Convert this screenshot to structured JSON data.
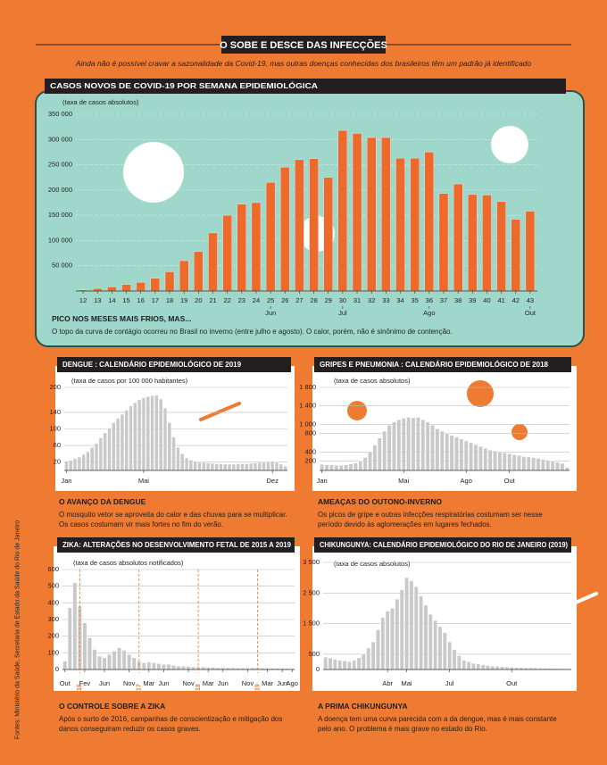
{
  "header": {
    "title": "O SOBE E DESCE DAS INFECÇÕES",
    "subtitle": "Ainda não é possível cravar a sazonalidade da Covid-19, mas outras doenças conhecidas dos brasileiros têm um padrão já identificado"
  },
  "source": "Fontes: Ministério da Saúde, Secretaria de Estado da Saúde do Rio de Janeiro",
  "chart_data": [
    {
      "type": "bar",
      "title": "CASOS NOVOS DE COVID-19 POR SEMANA EPIDEMIOLÓGICA",
      "y_label": "(taxa de casos absolutos)",
      "categories": [
        "12",
        "13",
        "14",
        "15",
        "16",
        "17",
        "18",
        "19",
        "20",
        "21",
        "22",
        "23",
        "24",
        "25",
        "26",
        "27",
        "28",
        "29",
        "30",
        "31",
        "32",
        "33",
        "34",
        "35",
        "36",
        "37",
        "38",
        "39",
        "40",
        "41",
        "42",
        "43"
      ],
      "values": [
        2000,
        5000,
        8000,
        13000,
        17000,
        25000,
        38000,
        60000,
        78000,
        115000,
        150000,
        172000,
        175000,
        215000,
        245000,
        260000,
        262000,
        225000,
        318000,
        312000,
        304000,
        304000,
        263000,
        263000,
        275000,
        193000,
        212000,
        191000,
        190000,
        177000,
        142000,
        158000
      ],
      "month_labels": [
        {
          "label": "Jun",
          "at": 13
        },
        {
          "label": "Jul",
          "at": 18
        },
        {
          "label": "Ago",
          "at": 24
        },
        {
          "label": "Out",
          "at": 31
        }
      ],
      "color": "#ee6a2c",
      "ylim": [
        0,
        350000
      ],
      "yticks": [
        {
          "value": 50000,
          "label": "50 000"
        },
        {
          "value": 100000,
          "label": "100 000"
        },
        {
          "value": 150000,
          "label": "150 000"
        },
        {
          "value": 200000,
          "label": "200 000"
        },
        {
          "value": 250000,
          "label": "250 000"
        },
        {
          "value": 300000,
          "label": "300 000"
        },
        {
          "value": 350000,
          "label": "350 000"
        }
      ],
      "grid": true,
      "caption_title": "PICO NOS MESES MAIS FRIOS, MAS...",
      "caption_text": "O topo da curva de contágio ocorreu no Brasil no inverno (entre julho e agosto). O calor, porém, não é sinônimo de contenção."
    },
    {
      "type": "bar",
      "title": "DENGUE : CALENDÁRIO EPIDEMIOLÓGICO DE 2019",
      "y_label": "(taxa de casos por 100 000 habitantes)",
      "categories": [
        "Jan",
        null,
        null,
        null,
        null,
        null,
        null,
        null,
        null,
        null,
        null,
        null,
        null,
        null,
        null,
        null,
        null,
        null,
        "Mai",
        null,
        null,
        null,
        null,
        null,
        null,
        null,
        null,
        null,
        null,
        null,
        null,
        null,
        null,
        null,
        null,
        null,
        null,
        null,
        null,
        null,
        null,
        null,
        null,
        null,
        null,
        null,
        null,
        null,
        "Dez",
        null,
        null,
        null
      ],
      "values": [
        22,
        24,
        28,
        32,
        38,
        45,
        55,
        65,
        78,
        90,
        102,
        115,
        125,
        135,
        145,
        155,
        163,
        170,
        175,
        178,
        180,
        181,
        172,
        150,
        115,
        80,
        55,
        40,
        30,
        25,
        22,
        20,
        19,
        18,
        17,
        16,
        16,
        15,
        15,
        15,
        16,
        16,
        16,
        17,
        18,
        19,
        20,
        21,
        22,
        20,
        15,
        10
      ],
      "color": "#c9c9c9",
      "ylim": [
        0,
        200
      ],
      "yticks": [
        20,
        60,
        100,
        140,
        200
      ],
      "grid": true,
      "caption_title": "O AVANÇO DA DENGUE",
      "caption_text": "O mosquito vetor se aproveita do calor e das chuvas para se multiplicar. Os casos costumam vir mais fortes no fim do verão."
    },
    {
      "type": "bar",
      "title": "GRIPES E PNEUMONIA : CALENDÁRIO EPIDEMIOLÓGICO DE 2018",
      "y_label": "(taxa de casos absolutos)",
      "categories": [
        "Jan",
        null,
        null,
        null,
        null,
        null,
        null,
        null,
        null,
        null,
        null,
        null,
        null,
        null,
        null,
        null,
        null,
        "Mai",
        null,
        null,
        null,
        null,
        null,
        null,
        null,
        null,
        null,
        null,
        null,
        null,
        "Ago",
        null,
        null,
        null,
        null,
        null,
        null,
        null,
        null,
        "Out",
        null,
        null,
        null,
        null,
        null,
        null,
        null,
        null,
        null,
        null,
        null,
        null
      ],
      "values": [
        130,
        120,
        120,
        110,
        110,
        120,
        140,
        160,
        200,
        280,
        400,
        550,
        700,
        850,
        980,
        1050,
        1100,
        1130,
        1150,
        1140,
        1150,
        1100,
        1050,
        980,
        900,
        850,
        800,
        760,
        720,
        680,
        640,
        600,
        560,
        520,
        480,
        440,
        420,
        400,
        380,
        360,
        340,
        320,
        300,
        290,
        280,
        260,
        240,
        220,
        200,
        180,
        150,
        60
      ],
      "color": "#c9c9c9",
      "ylim": [
        0,
        1800
      ],
      "yticks": [
        200,
        400,
        800,
        {
          "value": 1000,
          "label": "1 000"
        },
        {
          "value": 1400,
          "label": "1 400"
        },
        {
          "value": 1800,
          "label": "1 800"
        }
      ],
      "grid": true,
      "caption_title": "AMEAÇAS DO OUTONO-INVERNO",
      "caption_text": "Os picos de gripe e outras infecções respiratórias costumam ser nesse período devido às aglomerações em lugares fechados."
    },
    {
      "type": "bar",
      "title": "ZIKA: ALTERAÇÕES NO DESENVOLVIMENTO FETAL DE 2015 A 2019",
      "y_label": "(taxa de casos absolutos notificados)",
      "categories": [
        "Out",
        null,
        null,
        null,
        "Fev",
        null,
        null,
        null,
        "Jun",
        null,
        null,
        null,
        null,
        "Nov",
        null,
        null,
        null,
        "Mar",
        null,
        null,
        "Jun",
        null,
        null,
        null,
        null,
        "Nov",
        null,
        null,
        null,
        "Mar",
        null,
        null,
        "Jun",
        null,
        null,
        null,
        null,
        "Nov",
        null,
        null,
        null,
        "Mar",
        null,
        null,
        "Jun",
        null,
        "Ago"
      ],
      "values": [
        50,
        370,
        520,
        380,
        280,
        190,
        120,
        80,
        70,
        90,
        110,
        130,
        115,
        90,
        70,
        50,
        40,
        45,
        40,
        35,
        30,
        30,
        25,
        20,
        20,
        18,
        15,
        15,
        15,
        12,
        12,
        10,
        10,
        10,
        10,
        8,
        8,
        8,
        10,
        10,
        8,
        8,
        8,
        7,
        6,
        6,
        5
      ],
      "x_markers": [
        {
          "label": "2016",
          "at": 3
        },
        {
          "label": "2017",
          "at": 15
        },
        {
          "label": "2018",
          "at": 27
        },
        {
          "label": "2019",
          "at": 39
        }
      ],
      "color": "#c9c9c9",
      "ylim": [
        0,
        600
      ],
      "yticks": [
        0,
        100,
        200,
        300,
        400,
        500,
        600
      ],
      "grid": true,
      "caption_title": "O CONTROLE SOBRE A ZIKA",
      "caption_text": "Após o surto de 2016, campanhas de conscientização e mitigação dos danos conseguiram reduzir os casos graves."
    },
    {
      "type": "bar",
      "title": "CHIKUNGUNYA: CALENDÁRIO EPIDEMIOLÓGICO DO RIO DE JANEIRO (2019)",
      "y_label": "(taxa de casos absolutos)",
      "categories": [
        null,
        null,
        null,
        null,
        null,
        null,
        null,
        null,
        null,
        null,
        null,
        null,
        null,
        "Abr",
        null,
        null,
        null,
        "Mai",
        null,
        null,
        null,
        null,
        null,
        null,
        null,
        null,
        "Jul",
        null,
        null,
        null,
        null,
        null,
        null,
        null,
        null,
        null,
        null,
        null,
        null,
        "Out",
        null,
        null,
        null,
        null,
        null,
        null,
        null,
        null,
        null,
        null,
        null,
        null
      ],
      "values": [
        400,
        370,
        330,
        300,
        280,
        260,
        300,
        380,
        500,
        700,
        900,
        1300,
        1700,
        1900,
        2000,
        2300,
        2600,
        3000,
        2900,
        2700,
        2400,
        2100,
        1800,
        1600,
        1400,
        1200,
        900,
        650,
        450,
        300,
        250,
        200,
        180,
        150,
        130,
        110,
        100,
        90,
        80,
        70,
        60,
        60,
        50,
        50,
        45,
        40,
        40,
        35,
        30,
        30,
        25,
        20
      ],
      "color": "#c9c9c9",
      "ylim": [
        0,
        3500
      ],
      "yticks": [
        0,
        500,
        {
          "value": 1500,
          "label": "1 500"
        },
        {
          "value": 2500,
          "label": "2 500"
        },
        {
          "value": 3500,
          "label": "3 500"
        }
      ],
      "grid": true,
      "caption_title": "A PRIMA CHIKUNGUNYA",
      "caption_text": "A doença tem uma curva parecida com a da dengue, mas é mais constante pelo ano. O problema é mais grave no estado do Rio."
    }
  ]
}
